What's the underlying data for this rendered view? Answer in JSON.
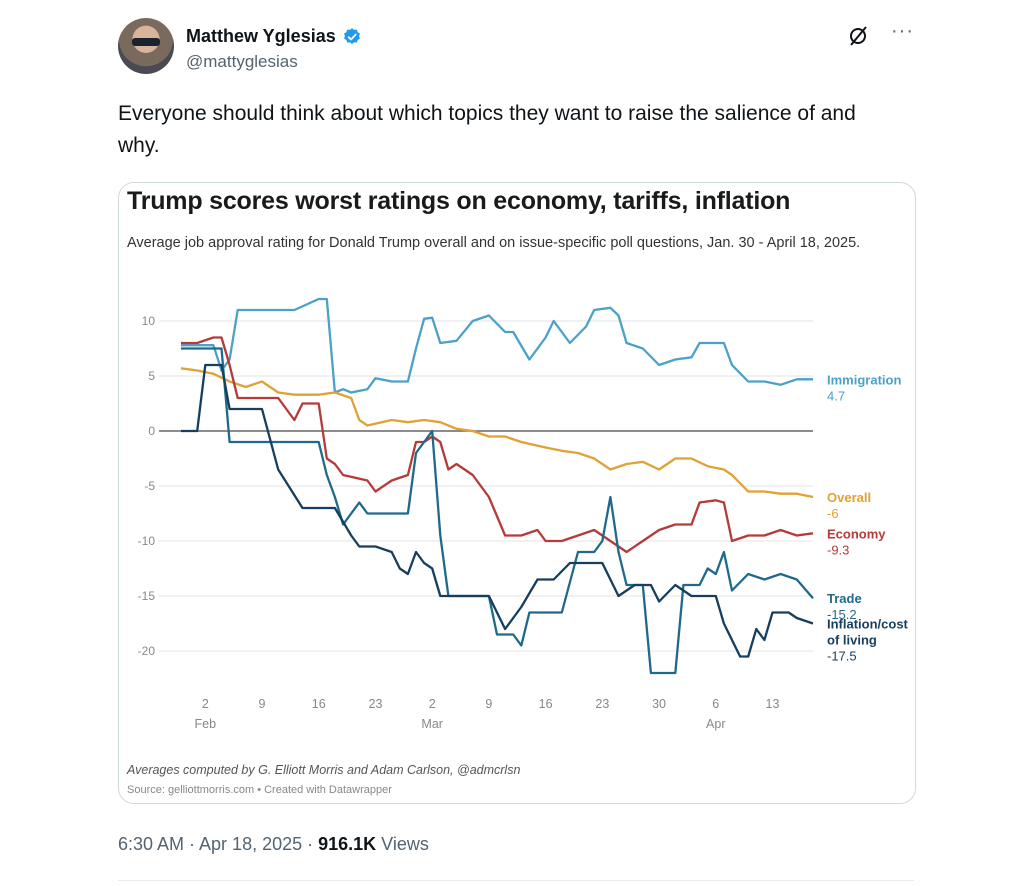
{
  "tweet": {
    "author_name": "Matthew Yglesias",
    "handle": "@mattyglesias",
    "text": "Everyone should think about which topics they want to raise the salience of and why.",
    "time": "6:30 AM · Apr 18, 2025 · ",
    "views_count": "916.1K",
    "views_label": " Views",
    "icons": {
      "verified": "verified-badge-icon",
      "grok": "grok-icon",
      "more": "more-dots-icon"
    },
    "colors": {
      "accent": "#1d9bf0"
    }
  },
  "card": {
    "title": "Trump scores worst ratings on economy, tariffs, inflation",
    "subtitle": "Average job approval rating for Donald Trump overall and on issue-specific poll questions, Jan. 30 - April 18, 2025.",
    "credit": "Averages computed by G. Elliott Morris and Adam Carlson, @admcrlsn",
    "source": "Source: gelliottmorris.com • Created with Datawrapper"
  },
  "chart_data": {
    "type": "line",
    "title": "Trump scores worst ratings on economy, tariffs, inflation",
    "subtitle": "Average job approval rating for Donald Trump overall and on issue-specific poll questions, Jan. 30 - April 18, 2025.",
    "x_range": [
      "2025-01-30",
      "2025-04-18"
    ],
    "ylim": [
      -22,
      12
    ],
    "y_ticks": [
      10,
      5,
      0,
      -5,
      -10,
      -15,
      -20
    ],
    "x_ticks": [
      {
        "date": "2025-02-02",
        "day": "2",
        "month": "Feb"
      },
      {
        "date": "2025-02-09",
        "day": "9",
        "month": ""
      },
      {
        "date": "2025-02-16",
        "day": "16",
        "month": ""
      },
      {
        "date": "2025-02-23",
        "day": "23",
        "month": ""
      },
      {
        "date": "2025-03-02",
        "day": "2",
        "month": "Mar"
      },
      {
        "date": "2025-03-09",
        "day": "9",
        "month": ""
      },
      {
        "date": "2025-03-16",
        "day": "16",
        "month": ""
      },
      {
        "date": "2025-03-23",
        "day": "23",
        "month": ""
      },
      {
        "date": "2025-03-30",
        "day": "30",
        "month": ""
      },
      {
        "date": "2025-04-06",
        "day": "6",
        "month": "Apr"
      },
      {
        "date": "2025-04-13",
        "day": "13",
        "month": ""
      }
    ],
    "grid": true,
    "series": [
      {
        "name": "Immigration",
        "label_value": "4.7",
        "color": "#4ba1c7",
        "points": [
          [
            "2025-01-30",
            7.8
          ],
          [
            "2025-02-03",
            7.8
          ],
          [
            "2025-02-04",
            5.5
          ],
          [
            "2025-02-05",
            6.5
          ],
          [
            "2025-02-06",
            11
          ],
          [
            "2025-02-13",
            11
          ],
          [
            "2025-02-16",
            12
          ],
          [
            "2025-02-17",
            12
          ],
          [
            "2025-02-18",
            3.5
          ],
          [
            "2025-02-19",
            3.8
          ],
          [
            "2025-02-20",
            3.5
          ],
          [
            "2025-02-22",
            3.8
          ],
          [
            "2025-02-23",
            4.8
          ],
          [
            "2025-02-25",
            4.5
          ],
          [
            "2025-02-27",
            4.5
          ],
          [
            "2025-02-28",
            7.5
          ],
          [
            "2025-03-01",
            10.2
          ],
          [
            "2025-03-02",
            10.3
          ],
          [
            "2025-03-03",
            8
          ],
          [
            "2025-03-05",
            8.2
          ],
          [
            "2025-03-07",
            10
          ],
          [
            "2025-03-09",
            10.5
          ],
          [
            "2025-03-11",
            9
          ],
          [
            "2025-03-12",
            9
          ],
          [
            "2025-03-14",
            6.5
          ],
          [
            "2025-03-16",
            8.5
          ],
          [
            "2025-03-17",
            10
          ],
          [
            "2025-03-18",
            9
          ],
          [
            "2025-03-19",
            8
          ],
          [
            "2025-03-21",
            9.5
          ],
          [
            "2025-03-22",
            11
          ],
          [
            "2025-03-24",
            11.2
          ],
          [
            "2025-03-25",
            10.5
          ],
          [
            "2025-03-26",
            8
          ],
          [
            "2025-03-28",
            7.5
          ],
          [
            "2025-03-30",
            6
          ],
          [
            "2025-04-01",
            6.5
          ],
          [
            "2025-04-03",
            6.7
          ],
          [
            "2025-04-04",
            8
          ],
          [
            "2025-04-06",
            8
          ],
          [
            "2025-04-07",
            8
          ],
          [
            "2025-04-08",
            6
          ],
          [
            "2025-04-10",
            4.5
          ],
          [
            "2025-04-12",
            4.5
          ],
          [
            "2025-04-14",
            4.2
          ],
          [
            "2025-04-16",
            4.7
          ],
          [
            "2025-04-18",
            4.7
          ]
        ]
      },
      {
        "name": "Overall",
        "label_value": "-6",
        "color": "#e0a135",
        "points": [
          [
            "2025-01-30",
            5.7
          ],
          [
            "2025-02-01",
            5.5
          ],
          [
            "2025-02-03",
            5.2
          ],
          [
            "2025-02-05",
            4.5
          ],
          [
            "2025-02-07",
            4
          ],
          [
            "2025-02-09",
            4.5
          ],
          [
            "2025-02-11",
            3.5
          ],
          [
            "2025-02-13",
            3.3
          ],
          [
            "2025-02-16",
            3.3
          ],
          [
            "2025-02-18",
            3.5
          ],
          [
            "2025-02-20",
            3
          ],
          [
            "2025-02-21",
            1
          ],
          [
            "2025-02-22",
            0.5
          ],
          [
            "2025-02-25",
            1
          ],
          [
            "2025-02-27",
            0.8
          ],
          [
            "2025-03-01",
            1
          ],
          [
            "2025-03-03",
            0.8
          ],
          [
            "2025-03-05",
            0.2
          ],
          [
            "2025-03-07",
            0
          ],
          [
            "2025-03-09",
            -0.5
          ],
          [
            "2025-03-11",
            -0.5
          ],
          [
            "2025-03-13",
            -1
          ],
          [
            "2025-03-16",
            -1.5
          ],
          [
            "2025-03-18",
            -1.8
          ],
          [
            "2025-03-20",
            -2
          ],
          [
            "2025-03-22",
            -2.5
          ],
          [
            "2025-03-24",
            -3.5
          ],
          [
            "2025-03-26",
            -3
          ],
          [
            "2025-03-28",
            -2.8
          ],
          [
            "2025-03-30",
            -3.5
          ],
          [
            "2025-04-01",
            -2.5
          ],
          [
            "2025-04-03",
            -2.5
          ],
          [
            "2025-04-05",
            -3.2
          ],
          [
            "2025-04-07",
            -3.5
          ],
          [
            "2025-04-08",
            -4
          ],
          [
            "2025-04-10",
            -5.5
          ],
          [
            "2025-04-12",
            -5.5
          ],
          [
            "2025-04-14",
            -5.7
          ],
          [
            "2025-04-16",
            -5.7
          ],
          [
            "2025-04-18",
            -6
          ]
        ]
      },
      {
        "name": "Economy",
        "label_value": "-9.3",
        "color": "#b53a3a",
        "points": [
          [
            "2025-01-30",
            8
          ],
          [
            "2025-02-01",
            8
          ],
          [
            "2025-02-03",
            8.5
          ],
          [
            "2025-02-04",
            8.5
          ],
          [
            "2025-02-05",
            6
          ],
          [
            "2025-02-06",
            3
          ],
          [
            "2025-02-09",
            3
          ],
          [
            "2025-02-11",
            3
          ],
          [
            "2025-02-13",
            1
          ],
          [
            "2025-02-14",
            2.5
          ],
          [
            "2025-02-16",
            2.5
          ],
          [
            "2025-02-17",
            -2.5
          ],
          [
            "2025-02-18",
            -3
          ],
          [
            "2025-02-19",
            -4
          ],
          [
            "2025-02-22",
            -4.5
          ],
          [
            "2025-02-23",
            -5.5
          ],
          [
            "2025-02-25",
            -4.5
          ],
          [
            "2025-02-27",
            -4
          ],
          [
            "2025-02-28",
            -1
          ],
          [
            "2025-03-01",
            -1
          ],
          [
            "2025-03-02",
            -0.5
          ],
          [
            "2025-03-03",
            -1
          ],
          [
            "2025-03-04",
            -3.5
          ],
          [
            "2025-03-05",
            -3
          ],
          [
            "2025-03-07",
            -4
          ],
          [
            "2025-03-09",
            -6
          ],
          [
            "2025-03-11",
            -9.5
          ],
          [
            "2025-03-13",
            -9.5
          ],
          [
            "2025-03-15",
            -9
          ],
          [
            "2025-03-16",
            -10
          ],
          [
            "2025-03-18",
            -10
          ],
          [
            "2025-03-20",
            -9.5
          ],
          [
            "2025-03-22",
            -9
          ],
          [
            "2025-03-24",
            -10
          ],
          [
            "2025-03-26",
            -11
          ],
          [
            "2025-03-28",
            -10
          ],
          [
            "2025-03-30",
            -9
          ],
          [
            "2025-04-01",
            -8.5
          ],
          [
            "2025-04-03",
            -8.5
          ],
          [
            "2025-04-04",
            -6.5
          ],
          [
            "2025-04-06",
            -6.3
          ],
          [
            "2025-04-07",
            -6.5
          ],
          [
            "2025-04-08",
            -10
          ],
          [
            "2025-04-10",
            -9.5
          ],
          [
            "2025-04-12",
            -9.5
          ],
          [
            "2025-04-14",
            -9
          ],
          [
            "2025-04-16",
            -9.5
          ],
          [
            "2025-04-18",
            -9.3
          ]
        ]
      },
      {
        "name": "Trade",
        "label_value": "-15.2",
        "color": "#1f6a8a",
        "points": [
          [
            "2025-01-30",
            7.5
          ],
          [
            "2025-02-04",
            7.5
          ],
          [
            "2025-02-05",
            -1
          ],
          [
            "2025-02-09",
            -1
          ],
          [
            "2025-02-11",
            -1
          ],
          [
            "2025-02-16",
            -1
          ],
          [
            "2025-02-17",
            -4
          ],
          [
            "2025-02-18",
            -6
          ],
          [
            "2025-02-19",
            -8.5
          ],
          [
            "2025-02-21",
            -6.5
          ],
          [
            "2025-02-22",
            -7.5
          ],
          [
            "2025-02-25",
            -7.5
          ],
          [
            "2025-02-27",
            -7.5
          ],
          [
            "2025-02-28",
            -2
          ],
          [
            "2025-03-01",
            -1
          ],
          [
            "2025-03-02",
            0
          ],
          [
            "2025-03-03",
            -9.5
          ],
          [
            "2025-03-04",
            -15
          ],
          [
            "2025-03-09",
            -15
          ],
          [
            "2025-03-10",
            -18.5
          ],
          [
            "2025-03-12",
            -18.5
          ],
          [
            "2025-03-13",
            -19.5
          ],
          [
            "2025-03-14",
            -16.5
          ],
          [
            "2025-03-16",
            -16.5
          ],
          [
            "2025-03-18",
            -16.5
          ],
          [
            "2025-03-20",
            -11
          ],
          [
            "2025-03-22",
            -11
          ],
          [
            "2025-03-23",
            -10
          ],
          [
            "2025-03-24",
            -6
          ],
          [
            "2025-03-25",
            -11
          ],
          [
            "2025-03-26",
            -14
          ],
          [
            "2025-03-28",
            -14
          ],
          [
            "2025-03-29",
            -22
          ],
          [
            "2025-04-01",
            -22
          ],
          [
            "2025-04-02",
            -14
          ],
          [
            "2025-04-04",
            -14
          ],
          [
            "2025-04-05",
            -12.5
          ],
          [
            "2025-04-06",
            -13
          ],
          [
            "2025-04-07",
            -11
          ],
          [
            "2025-04-08",
            -14.5
          ],
          [
            "2025-04-10",
            -13
          ],
          [
            "2025-04-12",
            -13.5
          ],
          [
            "2025-04-14",
            -13
          ],
          [
            "2025-04-16",
            -13.5
          ],
          [
            "2025-04-18",
            -15.2
          ]
        ]
      },
      {
        "name": "Inflation/cost of living",
        "label_value": "-17.5",
        "color": "#163e5e",
        "points": [
          [
            "2025-01-30",
            0
          ],
          [
            "2025-02-01",
            0
          ],
          [
            "2025-02-02",
            6
          ],
          [
            "2025-02-04",
            6
          ],
          [
            "2025-02-05",
            2
          ],
          [
            "2025-02-09",
            2
          ],
          [
            "2025-02-11",
            -3.5
          ],
          [
            "2025-02-14",
            -7
          ],
          [
            "2025-02-18",
            -7
          ],
          [
            "2025-02-20",
            -9.5
          ],
          [
            "2025-02-21",
            -10.5
          ],
          [
            "2025-02-23",
            -10.5
          ],
          [
            "2025-02-25",
            -11
          ],
          [
            "2025-02-26",
            -12.5
          ],
          [
            "2025-02-27",
            -13
          ],
          [
            "2025-02-28",
            -11
          ],
          [
            "2025-03-01",
            -12
          ],
          [
            "2025-03-02",
            -12.5
          ],
          [
            "2025-03-03",
            -15
          ],
          [
            "2025-03-09",
            -15
          ],
          [
            "2025-03-11",
            -18
          ],
          [
            "2025-03-13",
            -16
          ],
          [
            "2025-03-15",
            -13.5
          ],
          [
            "2025-03-17",
            -13.5
          ],
          [
            "2025-03-19",
            -12
          ],
          [
            "2025-03-21",
            -12
          ],
          [
            "2025-03-23",
            -12
          ],
          [
            "2025-03-25",
            -15
          ],
          [
            "2025-03-27",
            -14
          ],
          [
            "2025-03-29",
            -14
          ],
          [
            "2025-03-30",
            -15.5
          ],
          [
            "2025-04-01",
            -14
          ],
          [
            "2025-04-03",
            -15
          ],
          [
            "2025-04-04",
            -15
          ],
          [
            "2025-04-06",
            -15
          ],
          [
            "2025-04-07",
            -17.5
          ],
          [
            "2025-04-09",
            -20.5
          ],
          [
            "2025-04-10",
            -20.5
          ],
          [
            "2025-04-11",
            -18
          ],
          [
            "2025-04-12",
            -19
          ],
          [
            "2025-04-13",
            -16.5
          ],
          [
            "2025-04-15",
            -16.5
          ],
          [
            "2025-04-16",
            -17
          ],
          [
            "2025-04-18",
            -17.5
          ]
        ]
      }
    ]
  }
}
